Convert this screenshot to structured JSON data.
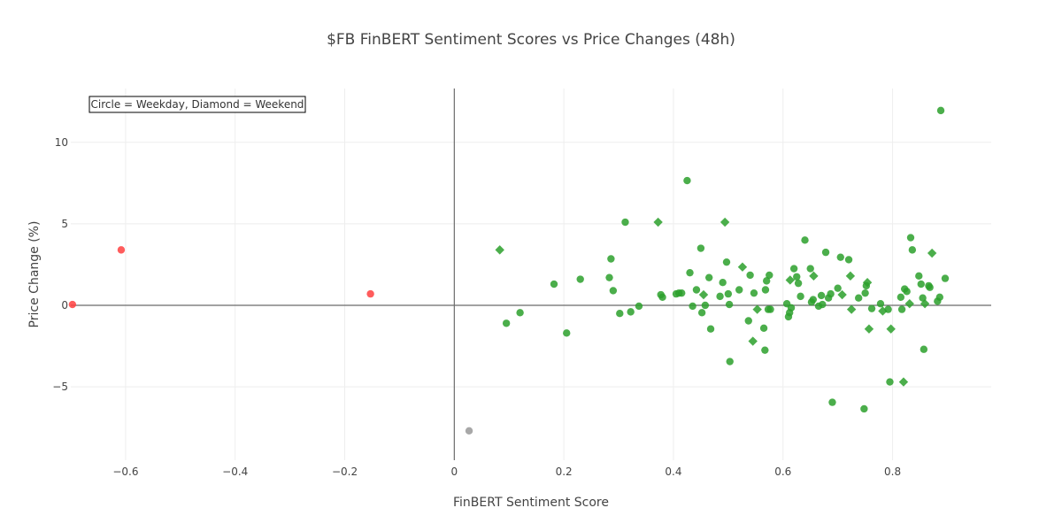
{
  "chart_data": {
    "type": "scatter",
    "title": "$FB FinBERT Sentiment Scores vs Price Changes (48h)",
    "xlabel": "FinBERT Sentiment Score",
    "ylabel": "Price Change (%)",
    "xlim": [
      -0.7,
      0.98
    ],
    "ylim": [
      -9.5,
      13.3
    ],
    "x_ticks": [
      -0.6,
      -0.4,
      -0.2,
      0,
      0.2,
      0.4,
      0.6,
      0.8
    ],
    "x_tick_labels": [
      "−0.6",
      "−0.4",
      "−0.2",
      "0",
      "0.2",
      "0.4",
      "0.6",
      "0.8"
    ],
    "y_ticks": [
      -5,
      0,
      5,
      10
    ],
    "y_tick_labels": [
      "−5",
      "0",
      "5",
      "10"
    ],
    "grid": true,
    "annotation": "Circle = Weekday, Diamond = Weekend",
    "colors": {
      "positive": "#2ca02c",
      "negative": "#ff4040",
      "neutral": "#999999"
    },
    "points": [
      {
        "x": -0.697,
        "y": 0.05,
        "shape": "circle",
        "sentiment": "negative"
      },
      {
        "x": -0.608,
        "y": 3.4,
        "shape": "circle",
        "sentiment": "negative"
      },
      {
        "x": -0.153,
        "y": 0.7,
        "shape": "circle",
        "sentiment": "negative"
      },
      {
        "x": 0.027,
        "y": -7.7,
        "shape": "circle",
        "sentiment": "neutral"
      },
      {
        "x": 0.083,
        "y": 3.4,
        "shape": "diamond",
        "sentiment": "positive"
      },
      {
        "x": 0.095,
        "y": -1.1,
        "shape": "circle",
        "sentiment": "positive"
      },
      {
        "x": 0.12,
        "y": -0.45,
        "shape": "circle",
        "sentiment": "positive"
      },
      {
        "x": 0.182,
        "y": 1.3,
        "shape": "circle",
        "sentiment": "positive"
      },
      {
        "x": 0.205,
        "y": -1.7,
        "shape": "circle",
        "sentiment": "positive"
      },
      {
        "x": 0.23,
        "y": 1.6,
        "shape": "circle",
        "sentiment": "positive"
      },
      {
        "x": 0.283,
        "y": 1.7,
        "shape": "circle",
        "sentiment": "positive"
      },
      {
        "x": 0.286,
        "y": 2.85,
        "shape": "circle",
        "sentiment": "positive"
      },
      {
        "x": 0.29,
        "y": 0.9,
        "shape": "circle",
        "sentiment": "positive"
      },
      {
        "x": 0.302,
        "y": -0.5,
        "shape": "circle",
        "sentiment": "positive"
      },
      {
        "x": 0.312,
        "y": 5.1,
        "shape": "circle",
        "sentiment": "positive"
      },
      {
        "x": 0.322,
        "y": -0.4,
        "shape": "circle",
        "sentiment": "positive"
      },
      {
        "x": 0.337,
        "y": -0.05,
        "shape": "circle",
        "sentiment": "positive"
      },
      {
        "x": 0.372,
        "y": 5.1,
        "shape": "diamond",
        "sentiment": "positive"
      },
      {
        "x": 0.377,
        "y": 0.65,
        "shape": "circle",
        "sentiment": "positive"
      },
      {
        "x": 0.38,
        "y": 0.5,
        "shape": "circle",
        "sentiment": "positive"
      },
      {
        "x": 0.405,
        "y": 0.7,
        "shape": "circle",
        "sentiment": "positive"
      },
      {
        "x": 0.41,
        "y": 0.75,
        "shape": "circle",
        "sentiment": "positive"
      },
      {
        "x": 0.415,
        "y": 0.75,
        "shape": "circle",
        "sentiment": "positive"
      },
      {
        "x": 0.425,
        "y": 7.65,
        "shape": "circle",
        "sentiment": "positive"
      },
      {
        "x": 0.43,
        "y": 2.0,
        "shape": "circle",
        "sentiment": "positive"
      },
      {
        "x": 0.435,
        "y": -0.05,
        "shape": "circle",
        "sentiment": "positive"
      },
      {
        "x": 0.442,
        "y": 0.95,
        "shape": "circle",
        "sentiment": "positive"
      },
      {
        "x": 0.45,
        "y": 3.5,
        "shape": "circle",
        "sentiment": "positive"
      },
      {
        "x": 0.452,
        "y": -0.45,
        "shape": "circle",
        "sentiment": "positive"
      },
      {
        "x": 0.455,
        "y": 0.65,
        "shape": "diamond",
        "sentiment": "positive"
      },
      {
        "x": 0.458,
        "y": 0.0,
        "shape": "circle",
        "sentiment": "positive"
      },
      {
        "x": 0.465,
        "y": 1.7,
        "shape": "circle",
        "sentiment": "positive"
      },
      {
        "x": 0.468,
        "y": -1.45,
        "shape": "circle",
        "sentiment": "positive"
      },
      {
        "x": 0.485,
        "y": 0.55,
        "shape": "circle",
        "sentiment": "positive"
      },
      {
        "x": 0.49,
        "y": 1.4,
        "shape": "circle",
        "sentiment": "positive"
      },
      {
        "x": 0.494,
        "y": 5.1,
        "shape": "diamond",
        "sentiment": "positive"
      },
      {
        "x": 0.497,
        "y": 2.65,
        "shape": "circle",
        "sentiment": "positive"
      },
      {
        "x": 0.5,
        "y": 0.7,
        "shape": "circle",
        "sentiment": "positive"
      },
      {
        "x": 0.502,
        "y": 0.05,
        "shape": "circle",
        "sentiment": "positive"
      },
      {
        "x": 0.503,
        "y": -3.45,
        "shape": "circle",
        "sentiment": "positive"
      },
      {
        "x": 0.52,
        "y": 0.95,
        "shape": "circle",
        "sentiment": "positive"
      },
      {
        "x": 0.526,
        "y": 2.35,
        "shape": "diamond",
        "sentiment": "positive"
      },
      {
        "x": 0.537,
        "y": -0.95,
        "shape": "circle",
        "sentiment": "positive"
      },
      {
        "x": 0.54,
        "y": 1.85,
        "shape": "circle",
        "sentiment": "positive"
      },
      {
        "x": 0.545,
        "y": -2.2,
        "shape": "diamond",
        "sentiment": "positive"
      },
      {
        "x": 0.547,
        "y": 0.75,
        "shape": "circle",
        "sentiment": "positive"
      },
      {
        "x": 0.553,
        "y": -0.25,
        "shape": "diamond",
        "sentiment": "positive"
      },
      {
        "x": 0.565,
        "y": -1.4,
        "shape": "circle",
        "sentiment": "positive"
      },
      {
        "x": 0.567,
        "y": -2.75,
        "shape": "circle",
        "sentiment": "positive"
      },
      {
        "x": 0.568,
        "y": 0.95,
        "shape": "circle",
        "sentiment": "positive"
      },
      {
        "x": 0.57,
        "y": 1.5,
        "shape": "circle",
        "sentiment": "positive"
      },
      {
        "x": 0.573,
        "y": -0.25,
        "shape": "circle",
        "sentiment": "positive"
      },
      {
        "x": 0.575,
        "y": 1.85,
        "shape": "circle",
        "sentiment": "positive"
      },
      {
        "x": 0.577,
        "y": -0.25,
        "shape": "circle",
        "sentiment": "positive"
      },
      {
        "x": 0.607,
        "y": 0.1,
        "shape": "circle",
        "sentiment": "positive"
      },
      {
        "x": 0.61,
        "y": -0.7,
        "shape": "circle",
        "sentiment": "positive"
      },
      {
        "x": 0.612,
        "y": -0.45,
        "shape": "circle",
        "sentiment": "positive"
      },
      {
        "x": 0.613,
        "y": 1.55,
        "shape": "diamond",
        "sentiment": "positive"
      },
      {
        "x": 0.615,
        "y": -0.15,
        "shape": "circle",
        "sentiment": "positive"
      },
      {
        "x": 0.62,
        "y": 2.25,
        "shape": "circle",
        "sentiment": "positive"
      },
      {
        "x": 0.625,
        "y": 1.75,
        "shape": "circle",
        "sentiment": "positive"
      },
      {
        "x": 0.628,
        "y": 1.35,
        "shape": "circle",
        "sentiment": "positive"
      },
      {
        "x": 0.632,
        "y": 0.55,
        "shape": "circle",
        "sentiment": "positive"
      },
      {
        "x": 0.64,
        "y": 4.0,
        "shape": "circle",
        "sentiment": "positive"
      },
      {
        "x": 0.65,
        "y": 2.25,
        "shape": "circle",
        "sentiment": "positive"
      },
      {
        "x": 0.652,
        "y": 0.2,
        "shape": "circle",
        "sentiment": "positive"
      },
      {
        "x": 0.655,
        "y": 0.35,
        "shape": "circle",
        "sentiment": "positive"
      },
      {
        "x": 0.656,
        "y": 1.8,
        "shape": "diamond",
        "sentiment": "positive"
      },
      {
        "x": 0.665,
        "y": -0.05,
        "shape": "circle",
        "sentiment": "positive"
      },
      {
        "x": 0.67,
        "y": 0.6,
        "shape": "circle",
        "sentiment": "positive"
      },
      {
        "x": 0.672,
        "y": 0.05,
        "shape": "circle",
        "sentiment": "positive"
      },
      {
        "x": 0.678,
        "y": 3.25,
        "shape": "circle",
        "sentiment": "positive"
      },
      {
        "x": 0.683,
        "y": 0.45,
        "shape": "circle",
        "sentiment": "positive"
      },
      {
        "x": 0.687,
        "y": 0.7,
        "shape": "circle",
        "sentiment": "positive"
      },
      {
        "x": 0.69,
        "y": -5.95,
        "shape": "circle",
        "sentiment": "positive"
      },
      {
        "x": 0.7,
        "y": 1.05,
        "shape": "circle",
        "sentiment": "positive"
      },
      {
        "x": 0.705,
        "y": 2.95,
        "shape": "circle",
        "sentiment": "positive"
      },
      {
        "x": 0.708,
        "y": 0.65,
        "shape": "diamond",
        "sentiment": "positive"
      },
      {
        "x": 0.72,
        "y": 2.8,
        "shape": "circle",
        "sentiment": "positive"
      },
      {
        "x": 0.723,
        "y": 1.8,
        "shape": "diamond",
        "sentiment": "positive"
      },
      {
        "x": 0.725,
        "y": -0.25,
        "shape": "diamond",
        "sentiment": "positive"
      },
      {
        "x": 0.738,
        "y": 0.45,
        "shape": "circle",
        "sentiment": "positive"
      },
      {
        "x": 0.748,
        "y": -6.35,
        "shape": "circle",
        "sentiment": "positive"
      },
      {
        "x": 0.75,
        "y": 0.75,
        "shape": "circle",
        "sentiment": "positive"
      },
      {
        "x": 0.752,
        "y": 1.2,
        "shape": "circle",
        "sentiment": "positive"
      },
      {
        "x": 0.754,
        "y": 1.4,
        "shape": "diamond",
        "sentiment": "positive"
      },
      {
        "x": 0.757,
        "y": -1.45,
        "shape": "diamond",
        "sentiment": "positive"
      },
      {
        "x": 0.762,
        "y": -0.2,
        "shape": "circle",
        "sentiment": "positive"
      },
      {
        "x": 0.778,
        "y": 0.1,
        "shape": "circle",
        "sentiment": "positive"
      },
      {
        "x": 0.782,
        "y": -0.35,
        "shape": "diamond",
        "sentiment": "positive"
      },
      {
        "x": 0.792,
        "y": -0.25,
        "shape": "circle",
        "sentiment": "positive"
      },
      {
        "x": 0.795,
        "y": -4.7,
        "shape": "circle",
        "sentiment": "positive"
      },
      {
        "x": 0.797,
        "y": -1.45,
        "shape": "diamond",
        "sentiment": "positive"
      },
      {
        "x": 0.815,
        "y": 0.5,
        "shape": "circle",
        "sentiment": "positive"
      },
      {
        "x": 0.817,
        "y": -0.25,
        "shape": "circle",
        "sentiment": "positive"
      },
      {
        "x": 0.82,
        "y": -4.7,
        "shape": "diamond",
        "sentiment": "positive"
      },
      {
        "x": 0.822,
        "y": 1.0,
        "shape": "circle",
        "sentiment": "positive"
      },
      {
        "x": 0.826,
        "y": 0.85,
        "shape": "circle",
        "sentiment": "positive"
      },
      {
        "x": 0.831,
        "y": 0.1,
        "shape": "diamond",
        "sentiment": "positive"
      },
      {
        "x": 0.833,
        "y": 4.15,
        "shape": "circle",
        "sentiment": "positive"
      },
      {
        "x": 0.836,
        "y": 3.4,
        "shape": "circle",
        "sentiment": "positive"
      },
      {
        "x": 0.848,
        "y": 1.8,
        "shape": "circle",
        "sentiment": "positive"
      },
      {
        "x": 0.852,
        "y": 1.3,
        "shape": "circle",
        "sentiment": "positive"
      },
      {
        "x": 0.855,
        "y": 0.45,
        "shape": "circle",
        "sentiment": "positive"
      },
      {
        "x": 0.857,
        "y": -2.7,
        "shape": "circle",
        "sentiment": "positive"
      },
      {
        "x": 0.859,
        "y": 0.1,
        "shape": "diamond",
        "sentiment": "positive"
      },
      {
        "x": 0.866,
        "y": 1.2,
        "shape": "circle",
        "sentiment": "positive"
      },
      {
        "x": 0.868,
        "y": 1.1,
        "shape": "circle",
        "sentiment": "positive"
      },
      {
        "x": 0.872,
        "y": 3.2,
        "shape": "diamond",
        "sentiment": "positive"
      },
      {
        "x": 0.882,
        "y": 0.25,
        "shape": "circle",
        "sentiment": "positive"
      },
      {
        "x": 0.886,
        "y": 0.5,
        "shape": "circle",
        "sentiment": "positive"
      },
      {
        "x": 0.888,
        "y": 11.95,
        "shape": "circle",
        "sentiment": "positive"
      },
      {
        "x": 0.896,
        "y": 1.65,
        "shape": "circle",
        "sentiment": "positive"
      }
    ]
  }
}
